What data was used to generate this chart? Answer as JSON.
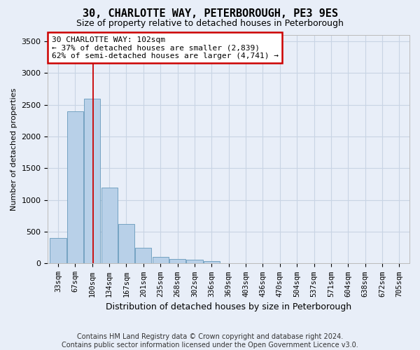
{
  "title": "30, CHARLOTTE WAY, PETERBOROUGH, PE3 9ES",
  "subtitle": "Size of property relative to detached houses in Peterborough",
  "xlabel": "Distribution of detached houses by size in Peterborough",
  "ylabel": "Number of detached properties",
  "footnote1": "Contains HM Land Registry data © Crown copyright and database right 2024.",
  "footnote2": "Contains public sector information licensed under the Open Government Licence v3.0.",
  "categories": [
    "33sqm",
    "67sqm",
    "100sqm",
    "134sqm",
    "167sqm",
    "201sqm",
    "235sqm",
    "268sqm",
    "302sqm",
    "336sqm",
    "369sqm",
    "403sqm",
    "436sqm",
    "470sqm",
    "504sqm",
    "537sqm",
    "571sqm",
    "604sqm",
    "638sqm",
    "672sqm",
    "705sqm"
  ],
  "values": [
    400,
    2400,
    2600,
    1200,
    620,
    250,
    100,
    70,
    60,
    40,
    0,
    0,
    0,
    0,
    0,
    0,
    0,
    0,
    0,
    0,
    0
  ],
  "bar_color": "#b8d0e8",
  "bar_edge_color": "#6699bb",
  "grid_color": "#c8d4e4",
  "background_color": "#e8eef8",
  "annotation_line1": "30 CHARLOTTE WAY: 102sqm",
  "annotation_line2": "← 37% of detached houses are smaller (2,839)",
  "annotation_line3": "62% of semi-detached houses are larger (4,741) →",
  "annotation_box_facecolor": "#ffffff",
  "annotation_box_edgecolor": "#cc0000",
  "red_line_x": 2.05,
  "ylim": [
    0,
    3600
  ],
  "yticks": [
    0,
    500,
    1000,
    1500,
    2000,
    2500,
    3000,
    3500
  ],
  "title_fontsize": 11,
  "subtitle_fontsize": 9,
  "xlabel_fontsize": 9,
  "ylabel_fontsize": 8,
  "tick_fontsize": 8,
  "xtick_fontsize": 7.5,
  "annotation_fontsize": 8,
  "footnote_fontsize": 7
}
